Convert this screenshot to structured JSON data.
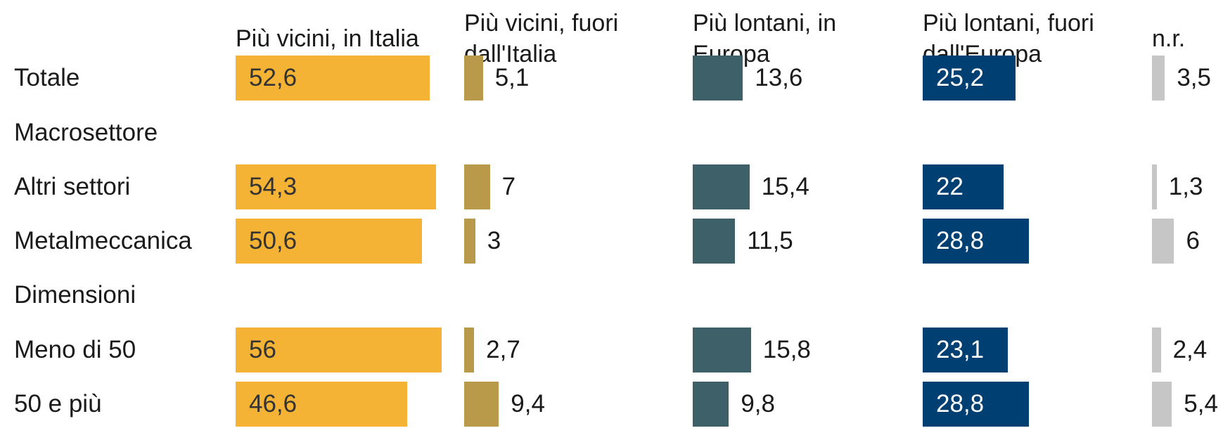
{
  "chart_data": {
    "type": "bar",
    "categories": [
      "Totale",
      "Macrosettore",
      "Altri settori",
      "Metalmeccanica",
      "Dimensioni",
      "Meno di 50",
      "50 e più"
    ],
    "series": [
      {
        "name": "Più vicini, in Italia",
        "color": "#f5b335",
        "values": [
          52.6,
          null,
          54.3,
          50.6,
          null,
          56,
          46.6
        ],
        "value_labels": [
          "52,6",
          null,
          "54,3",
          "50,6",
          null,
          "56",
          "46,6"
        ]
      },
      {
        "name": "Più vicini, fuori dall'Italia",
        "color": "#b89a4a",
        "values": [
          5.1,
          null,
          7,
          3,
          null,
          2.7,
          9.4
        ],
        "value_labels": [
          "5,1",
          null,
          "7",
          "3",
          null,
          "2,7",
          "9,4"
        ]
      },
      {
        "name": "Più lontani, in Europa",
        "color": "#3e6068",
        "values": [
          13.6,
          null,
          15.4,
          11.5,
          null,
          15.8,
          9.8
        ],
        "value_labels": [
          "13,6",
          null,
          "15,4",
          "11,5",
          null,
          "15,8",
          "9,8"
        ]
      },
      {
        "name": "Più lontani, fuori dall'Europa",
        "color": "#003f72",
        "values": [
          25.2,
          null,
          22,
          28.8,
          null,
          23.1,
          28.8
        ],
        "value_labels": [
          "25,2",
          null,
          "22",
          "28,8",
          null,
          "23,1",
          "28,8"
        ]
      },
      {
        "name": "n.r.",
        "color": "#c6c6c6",
        "values": [
          3.5,
          null,
          1.3,
          6,
          null,
          2.4,
          5.4
        ],
        "value_labels": [
          "3,5",
          null,
          "1,3",
          "6",
          null,
          "2,4",
          "5,4"
        ]
      }
    ]
  }
}
